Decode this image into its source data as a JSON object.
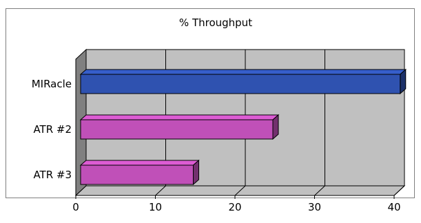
{
  "chart_data": {
    "type": "bar",
    "orientation": "horizontal",
    "title": "% Throughput",
    "categories": [
      "MIRacle",
      "ATR #2",
      "ATR #3"
    ],
    "values": [
      40.5,
      24.5,
      14.5
    ],
    "bar_colors": [
      "#2f52b0",
      "#c050b8",
      "#c050b8"
    ],
    "xlabel": "",
    "ylabel": "",
    "xlim": [
      0,
      40
    ],
    "x_ticks": [
      "0",
      "10",
      "20",
      "30",
      "40"
    ],
    "grid": true,
    "legend": "none",
    "plot_background": "#c0c0c0"
  }
}
